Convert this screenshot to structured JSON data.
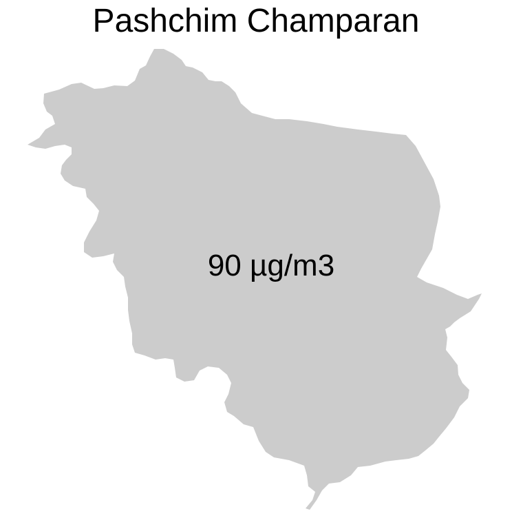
{
  "title": "Pashchim Champaran",
  "region": {
    "name": "Pashchim Champaran",
    "value": 90,
    "unit": "µg/m3",
    "label": "90 µg/m3",
    "fill_color": "#cccccc"
  },
  "colors": {
    "background": "#ffffff",
    "text": "#000000"
  }
}
